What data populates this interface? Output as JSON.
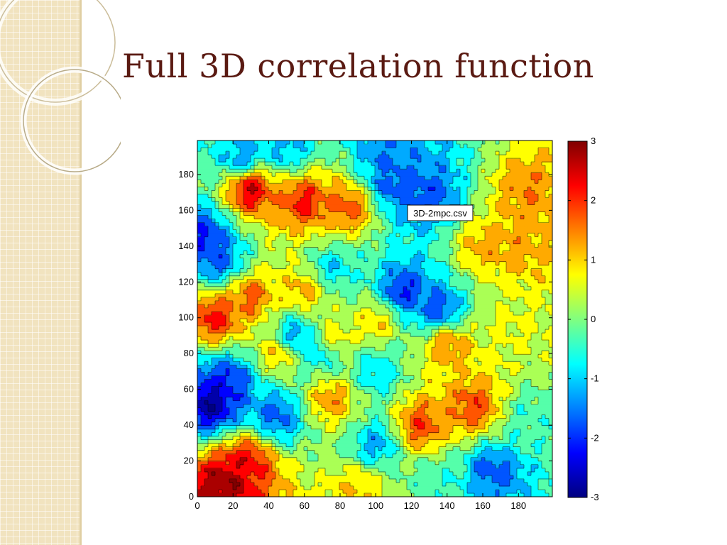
{
  "slide": {
    "title": "Full 3D correlation function",
    "colors": {
      "title": "#5a1a12",
      "sidebar": "#f1e3bf"
    }
  },
  "chart_data": {
    "type": "heatmap",
    "subtype": "filled-contour",
    "colormap": "jet",
    "annotation": "3D-2mpc.csv",
    "xlim": [
      0,
      199
    ],
    "ylim": [
      0,
      199
    ],
    "x_ticks": [
      0,
      20,
      40,
      60,
      80,
      100,
      120,
      140,
      160,
      180
    ],
    "y_ticks": [
      0,
      20,
      40,
      60,
      80,
      100,
      120,
      140,
      160,
      180
    ],
    "colorbar": {
      "min": -3,
      "max": 3,
      "ticks": [
        3,
        2,
        1,
        0,
        -1,
        -2,
        -3
      ]
    },
    "z_levels_step": 0.5,
    "features": [
      {
        "x": 15,
        "y": 8,
        "value": 3.0,
        "note": "dark red peak lower-left corner"
      },
      {
        "x": 28,
        "y": 20,
        "value": 2.4
      },
      {
        "x": 8,
        "y": 52,
        "value": -3.0,
        "note": "dark blue trough left edge"
      },
      {
        "x": 18,
        "y": 65,
        "value": -2.2
      },
      {
        "x": 10,
        "y": 100,
        "value": 2.3
      },
      {
        "x": 30,
        "y": 112,
        "value": 1.8
      },
      {
        "x": 12,
        "y": 132,
        "value": -1.8
      },
      {
        "x": 3,
        "y": 145,
        "value": -2.2
      },
      {
        "x": 30,
        "y": 172,
        "value": 2.6
      },
      {
        "x": 60,
        "y": 165,
        "value": 2.2
      },
      {
        "x": 85,
        "y": 162,
        "value": 1.9
      },
      {
        "x": 25,
        "y": 190,
        "value": -1.4
      },
      {
        "x": 50,
        "y": 195,
        "value": -1.2
      },
      {
        "x": 110,
        "y": 175,
        "value": -1.8
      },
      {
        "x": 105,
        "y": 190,
        "value": -1.5
      },
      {
        "x": 130,
        "y": 168,
        "value": -1.9
      },
      {
        "x": 160,
        "y": 140,
        "value": 1.2
      },
      {
        "x": 180,
        "y": 140,
        "value": 1.3
      },
      {
        "x": 185,
        "y": 170,
        "value": 1.4
      },
      {
        "x": 115,
        "y": 115,
        "value": -2.2
      },
      {
        "x": 135,
        "y": 105,
        "value": -1.9
      },
      {
        "x": 75,
        "y": 128,
        "value": -1.0
      },
      {
        "x": 60,
        "y": 115,
        "value": 1.3
      },
      {
        "x": 45,
        "y": 80,
        "value": 1.2
      },
      {
        "x": 55,
        "y": 90,
        "value": -1.6
      },
      {
        "x": 70,
        "y": 82,
        "value": -1.3
      },
      {
        "x": 75,
        "y": 88,
        "value": 1.3
      },
      {
        "x": 100,
        "y": 98,
        "value": 1.1
      },
      {
        "x": 140,
        "y": 85,
        "value": 1.5
      },
      {
        "x": 175,
        "y": 95,
        "value": 0.6
      },
      {
        "x": 75,
        "y": 55,
        "value": 1.5
      },
      {
        "x": 45,
        "y": 45,
        "value": -1.8
      },
      {
        "x": 100,
        "y": 30,
        "value": -1.3
      },
      {
        "x": 125,
        "y": 40,
        "value": 2.0
      },
      {
        "x": 155,
        "y": 50,
        "value": 1.9
      },
      {
        "x": 165,
        "y": 15,
        "value": -1.8
      },
      {
        "x": 185,
        "y": 45,
        "value": -0.4
      },
      {
        "x": 90,
        "y": 5,
        "value": 1.0
      },
      {
        "x": 135,
        "y": 10,
        "value": -0.4
      },
      {
        "x": 100,
        "y": 70,
        "value": -1.0
      }
    ]
  }
}
